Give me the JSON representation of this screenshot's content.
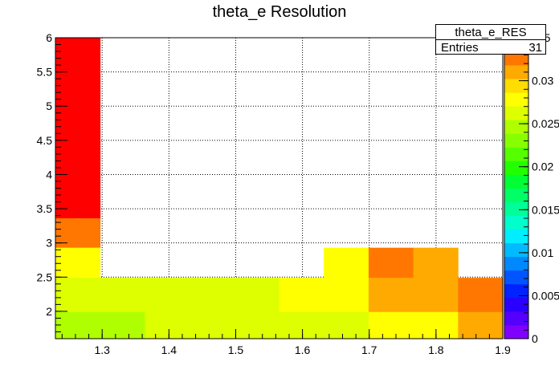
{
  "chart_data": {
    "type": "heatmap",
    "title": "theta_e Resolution",
    "xlabel": "",
    "ylabel": "",
    "xlim": [
      1.23,
      1.9
    ],
    "ylim": [
      1.6,
      6.0
    ],
    "zlim": [
      0,
      0.035
    ],
    "grid": true,
    "x_ticks": [
      "1.3",
      "1.4",
      "1.5",
      "1.6",
      "1.7",
      "1.8",
      "1.9"
    ],
    "y_ticks": [
      "2",
      "2.5",
      "3",
      "3.5",
      "4",
      "4.5",
      "5",
      "5.5",
      "6"
    ],
    "z_ticks": [
      "0",
      "0.005",
      "0.01",
      "0.015",
      "0.02",
      "0.025",
      "0.03",
      "035"
    ],
    "stats": {
      "name": "theta_e_RES",
      "entries_label": "Entries",
      "entries": "31"
    },
    "x_bin_edges": [
      1.23,
      1.297,
      1.364,
      1.431,
      1.498,
      1.565,
      1.632,
      1.699,
      1.766,
      1.833,
      1.9
    ],
    "y_bin_edges": [
      1.6,
      1.99,
      2.49,
      2.93,
      3.36,
      3.81,
      6.0
    ],
    "cells": [
      {
        "x": 1.264,
        "y": 4.9,
        "z": 0.035
      },
      {
        "x": 1.264,
        "y": 3.59,
        "z": 0.034
      },
      {
        "x": 1.264,
        "y": 3.15,
        "z": 0.0325
      },
      {
        "x": 1.264,
        "y": 2.71,
        "z": 0.0285
      },
      {
        "x": 1.264,
        "y": 2.24,
        "z": 0.027
      },
      {
        "x": 1.264,
        "y": 1.8,
        "z": 0.0245
      },
      {
        "x": 1.331,
        "y": 2.24,
        "z": 0.0255
      },
      {
        "x": 1.331,
        "y": 1.8,
        "z": 0.0245
      },
      {
        "x": 1.398,
        "y": 2.24,
        "z": 0.027
      },
      {
        "x": 1.398,
        "y": 1.8,
        "z": 0.027
      },
      {
        "x": 1.465,
        "y": 2.24,
        "z": 0.027
      },
      {
        "x": 1.465,
        "y": 1.8,
        "z": 0.0255
      },
      {
        "x": 1.532,
        "y": 2.24,
        "z": 0.027
      },
      {
        "x": 1.532,
        "y": 1.8,
        "z": 0.027
      },
      {
        "x": 1.599,
        "y": 2.24,
        "z": 0.0285
      },
      {
        "x": 1.599,
        "y": 1.8,
        "z": 0.027
      },
      {
        "x": 1.666,
        "y": 2.71,
        "z": 0.0285
      },
      {
        "x": 1.666,
        "y": 2.24,
        "z": 0.0285
      },
      {
        "x": 1.666,
        "y": 1.8,
        "z": 0.027
      },
      {
        "x": 1.733,
        "y": 2.71,
        "z": 0.0325
      },
      {
        "x": 1.733,
        "y": 2.24,
        "z": 0.0305
      },
      {
        "x": 1.733,
        "y": 1.8,
        "z": 0.0285
      },
      {
        "x": 1.8,
        "y": 2.71,
        "z": 0.0305
      },
      {
        "x": 1.8,
        "y": 2.24,
        "z": 0.0305
      },
      {
        "x": 1.8,
        "y": 1.8,
        "z": 0.0285
      },
      {
        "x": 1.866,
        "y": 2.24,
        "z": 0.0325
      },
      {
        "x": 1.866,
        "y": 1.8,
        "z": 0.0305
      }
    ],
    "palette": [
      "#8000ff",
      "#5500ff",
      "#2a00ff",
      "#0022ff",
      "#0055ff",
      "#0088ff",
      "#00bbff",
      "#00eeff",
      "#00ffcc",
      "#00ff99",
      "#00ff66",
      "#00ff33",
      "#22ff00",
      "#55ff00",
      "#88ff00",
      "#b0ff00",
      "#ddff00",
      "#ffff00",
      "#ffdd00",
      "#ffaa00",
      "#ff7700",
      "#ff0000"
    ]
  }
}
